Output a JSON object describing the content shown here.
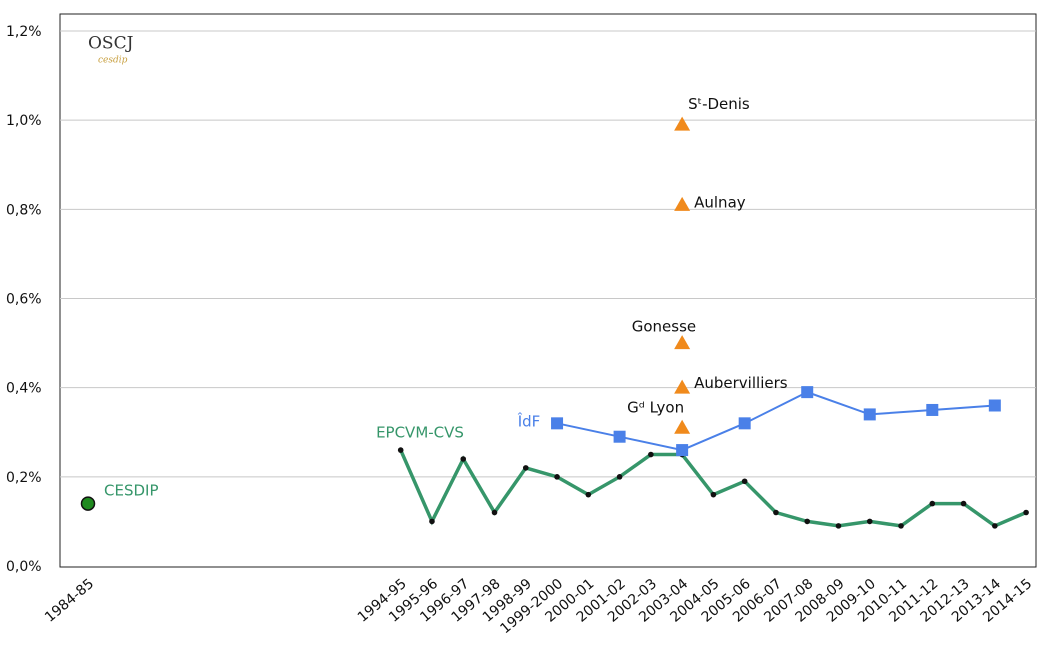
{
  "chart_data": {
    "type": "line",
    "logo": {
      "title": "OSCJ",
      "subtitle": "cesdip"
    },
    "categories": [
      "1984-85",
      null,
      null,
      null,
      null,
      null,
      null,
      null,
      null,
      null,
      "1994-95",
      "1995-96",
      "1996-97",
      "1997-98",
      "1998-99",
      "1999-2000",
      "2000-01",
      "2001-02",
      "2002-03",
      "2003-04",
      "2004-05",
      "2005-06",
      "2006-07",
      "2007-08",
      "2008-09",
      "2009-10",
      "2010-11",
      "2011-12",
      "2012-13",
      "2013-14",
      "2014-15"
    ],
    "ylim": [
      0,
      1.2
    ],
    "yticks": [
      {
        "value": 0,
        "label": "0,0%"
      },
      {
        "value": 0.2,
        "label": "0,2%"
      },
      {
        "value": 0.4,
        "label": "0,4%"
      },
      {
        "value": 0.6,
        "label": "0,6%"
      },
      {
        "value": 0.8,
        "label": "0,8%"
      },
      {
        "value": 1.0,
        "label": "1,0%"
      },
      {
        "value": 1.2,
        "label": "1,2%"
      }
    ],
    "grid": true,
    "series": [
      {
        "name": "EPCVM-CVS",
        "color": "#36966a",
        "marker": "dot",
        "x": [
          "1994-95",
          "1995-96",
          "1996-97",
          "1997-98",
          "1998-99",
          "1999-2000",
          "2000-01",
          "2001-02",
          "2002-03",
          "2003-04",
          "2004-05",
          "2005-06",
          "2006-07",
          "2007-08",
          "2008-09",
          "2009-10",
          "2010-11",
          "2011-12",
          "2012-13",
          "2013-14",
          "2014-15"
        ],
        "values": [
          0.26,
          0.1,
          0.24,
          0.12,
          0.22,
          0.2,
          0.16,
          0.2,
          0.25,
          0.25,
          0.16,
          0.19,
          0.12,
          0.1,
          0.09,
          0.1,
          0.09,
          0.14,
          0.14,
          0.09,
          0.12
        ]
      },
      {
        "name": "ÎdF",
        "color": "#4a80e8",
        "marker": "square",
        "x": [
          "1999-2000",
          "2001-02",
          "2003-04",
          "2005-06",
          "2007-08",
          "2009-10",
          "2011-12",
          "2013-14"
        ],
        "values": [
          0.32,
          0.29,
          0.26,
          0.32,
          0.39,
          0.34,
          0.35,
          0.36
        ]
      },
      {
        "name": "CESDIP",
        "color": "#36966a",
        "marker": "circle",
        "x": [
          "1984-85"
        ],
        "values": [
          0.14
        ]
      }
    ],
    "points": {
      "color": "#f08a1c",
      "x": "2003-04",
      "items": [
        {
          "name": "Sᵗ-Denis",
          "value": 0.99
        },
        {
          "name": "Aulnay",
          "value": 0.81
        },
        {
          "name": "Gonesse",
          "value": 0.5
        },
        {
          "name": "Aubervilliers",
          "value": 0.4
        },
        {
          "name": "Gᵈ Lyon",
          "value": 0.31
        }
      ]
    }
  }
}
